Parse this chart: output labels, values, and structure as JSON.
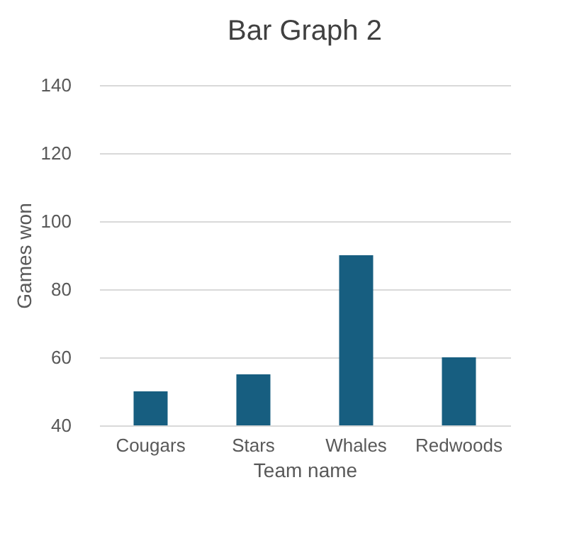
{
  "chart_data": {
    "type": "bar",
    "title": "Bar Graph 2",
    "xlabel": "Team name",
    "ylabel": "Games won",
    "categories": [
      "Cougars",
      "Stars",
      "Whales",
      "Redwoods"
    ],
    "values": [
      50,
      55,
      90,
      60
    ],
    "color": "#175e80",
    "ylim": [
      40,
      140
    ],
    "yticks": [
      40,
      60,
      80,
      100,
      120,
      140
    ],
    "grid": "y"
  }
}
